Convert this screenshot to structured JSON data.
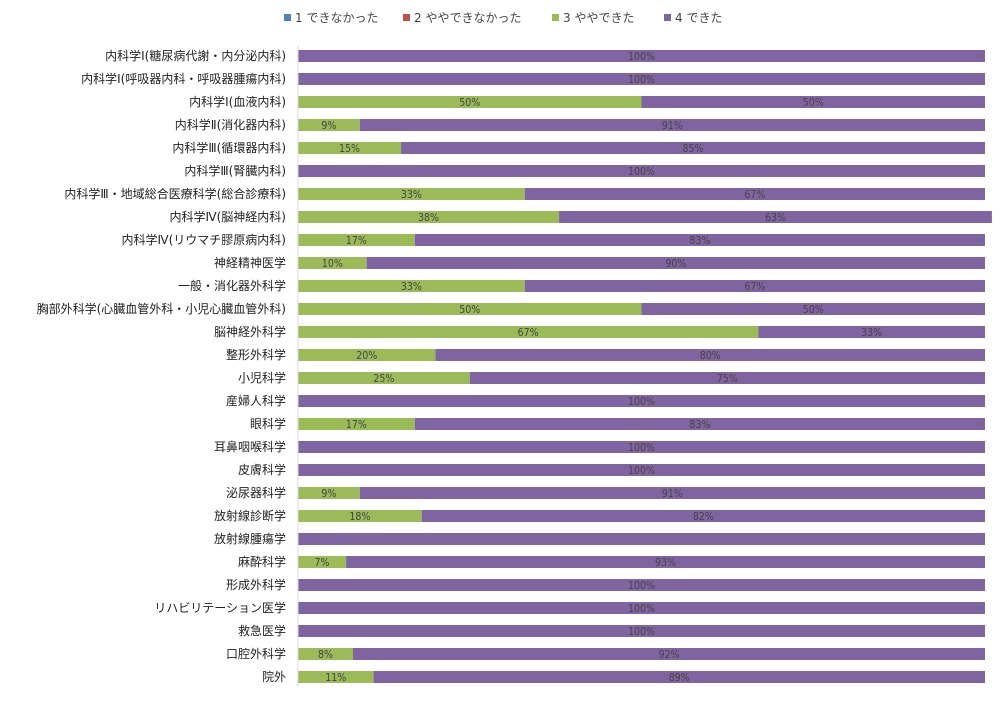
{
  "chart_data": {
    "type": "bar",
    "orientation": "horizontal",
    "stacked": "percent",
    "legend_position": "top",
    "grid": false,
    "xlim": [
      0,
      100
    ],
    "series": [
      {
        "name": "1 できなかった",
        "color": "#4f81bd"
      },
      {
        "name": "2 ややできなかった",
        "color": "#c0504d"
      },
      {
        "name": "3 ややできた",
        "color": "#9bbb59"
      },
      {
        "name": "4 できた",
        "color": "#8064a2"
      }
    ],
    "categories": [
      "内科学Ⅰ(糖尿病代謝・内分泌内科)",
      "内科学Ⅰ(呼吸器内科・呼吸器腫瘍内科)",
      "内科学Ⅰ(血液内科)",
      "内科学Ⅱ(消化器内科)",
      "内科学Ⅲ(循環器内科)",
      "内科学Ⅲ(腎臓内科)",
      "内科学Ⅲ・地域総合医療科学(総合診療科)",
      "内科学Ⅳ(脳神経内科)",
      "内科学Ⅳ(リウマチ膠原病内科)",
      "神経精神医学",
      "一般・消化器外科学",
      "胸部外科学(心臓血管外科・小児心臓血管外科)",
      "脳神経外科学",
      "整形外科学",
      "小児科学",
      "産婦人科学",
      "眼科学",
      "耳鼻咽喉科学",
      "皮膚科学",
      "泌尿器科学",
      "放射線診断学",
      "放射線腫瘍学",
      "麻酔科学",
      "形成外科学",
      "リハビリテーション医学",
      "救急医学",
      "口腔外科学",
      "院外"
    ],
    "values": [
      [
        0,
        0,
        0,
        100
      ],
      [
        0,
        0,
        0,
        100
      ],
      [
        0,
        0,
        50,
        50
      ],
      [
        0,
        0,
        9,
        91
      ],
      [
        0,
        0,
        15,
        85
      ],
      [
        0,
        0,
        0,
        100
      ],
      [
        0,
        0,
        33,
        67
      ],
      [
        0,
        0,
        38,
        63
      ],
      [
        0,
        0,
        17,
        83
      ],
      [
        0,
        0,
        10,
        90
      ],
      [
        0,
        0,
        33,
        67
      ],
      [
        0,
        0,
        50,
        50
      ],
      [
        0,
        0,
        67,
        33
      ],
      [
        0,
        0,
        20,
        80
      ],
      [
        0,
        0,
        25,
        75
      ],
      [
        0,
        0,
        0,
        100
      ],
      [
        0,
        0,
        17,
        83
      ],
      [
        0,
        0,
        0,
        100
      ],
      [
        0,
        0,
        0,
        100
      ],
      [
        0,
        0,
        9,
        91
      ],
      [
        0,
        0,
        18,
        82
      ],
      [
        0,
        0,
        0,
        100
      ],
      [
        0,
        0,
        7,
        93
      ],
      [
        0,
        0,
        0,
        100
      ],
      [
        0,
        0,
        0,
        100
      ],
      [
        0,
        0,
        0,
        100
      ],
      [
        0,
        0,
        8,
        92
      ],
      [
        0,
        0,
        11,
        89
      ]
    ],
    "labels": [
      [
        "",
        "",
        "",
        "100%"
      ],
      [
        "",
        "",
        "",
        "100%"
      ],
      [
        "",
        "",
        "50%",
        "50%"
      ],
      [
        "",
        "",
        "9%",
        "91%"
      ],
      [
        "",
        "",
        "15%",
        "85%"
      ],
      [
        "",
        "",
        "",
        "100%"
      ],
      [
        "",
        "",
        "33%",
        "67%"
      ],
      [
        "",
        "",
        "38%",
        "63%"
      ],
      [
        "",
        "",
        "17%",
        "83%"
      ],
      [
        "",
        "",
        "10%",
        "90%"
      ],
      [
        "",
        "",
        "33%",
        "67%"
      ],
      [
        "",
        "",
        "50%",
        "50%"
      ],
      [
        "",
        "",
        "67%",
        "33%"
      ],
      [
        "",
        "",
        "20%",
        "80%"
      ],
      [
        "",
        "",
        "25%",
        "75%"
      ],
      [
        "",
        "",
        "",
        "100%"
      ],
      [
        "",
        "",
        "17%",
        "83%"
      ],
      [
        "",
        "",
        "",
        "100%"
      ],
      [
        "",
        "",
        "",
        "100%"
      ],
      [
        "",
        "",
        "9%",
        "91%"
      ],
      [
        "",
        "",
        "18%",
        "82%"
      ],
      [
        "",
        "",
        "",
        ""
      ],
      [
        "",
        "",
        "7%",
        "93%"
      ],
      [
        "",
        "",
        "",
        "100%"
      ],
      [
        "",
        "",
        "",
        "100%"
      ],
      [
        "",
        "",
        "",
        "100%"
      ],
      [
        "",
        "",
        "8%",
        "92%"
      ],
      [
        "",
        "",
        "11%",
        "89%"
      ]
    ]
  }
}
